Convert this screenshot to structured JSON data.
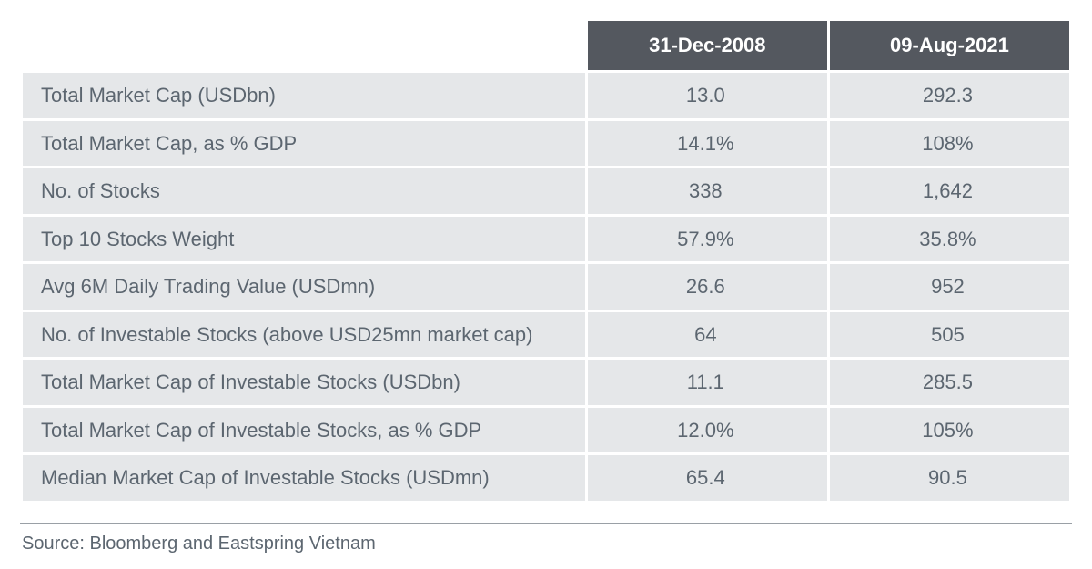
{
  "table": {
    "header_bg": "#54585f",
    "header_text_color": "#ffffff",
    "row_bg": "#e5e7e9",
    "row_text_color": "#5c6670",
    "font_family": "Segoe UI, Helvetica Neue, Arial, sans-serif",
    "header_fontsize_pt": 16,
    "cell_fontsize_pt": 16,
    "cell_font_weight": 300,
    "col_widths_pct": [
      54,
      23,
      23
    ],
    "columns": [
      "",
      "31-Dec-2008",
      "09-Aug-2021"
    ],
    "rows": [
      {
        "label": "Total Market Cap (USDbn)",
        "v1": "13.0",
        "v2": "292.3"
      },
      {
        "label": "Total Market Cap, as % GDP",
        "v1": "14.1%",
        "v2": "108%"
      },
      {
        "label": "No. of Stocks",
        "v1": "338",
        "v2": "1,642"
      },
      {
        "label": "Top 10 Stocks Weight",
        "v1": "57.9%",
        "v2": "35.8%"
      },
      {
        "label": "Avg 6M Daily Trading Value (USDmn)",
        "v1": "26.6",
        "v2": "952"
      },
      {
        "label": "No. of Investable Stocks (above USD25mn market cap)",
        "v1": "64",
        "v2": "505"
      },
      {
        "label": "Total Market Cap of Investable Stocks (USDbn)",
        "v1": "11.1",
        "v2": "285.5"
      },
      {
        "label": "Total Market Cap of Investable Stocks, as % GDP",
        "v1": "12.0%",
        "v2": "105%"
      },
      {
        "label": "Median Market Cap of Investable Stocks (USDmn)",
        "v1": "65.4",
        "v2": "90.5"
      }
    ]
  },
  "rule_color": "#9aa0a6",
  "source_line": "Source: Bloomberg and Eastspring Vietnam"
}
